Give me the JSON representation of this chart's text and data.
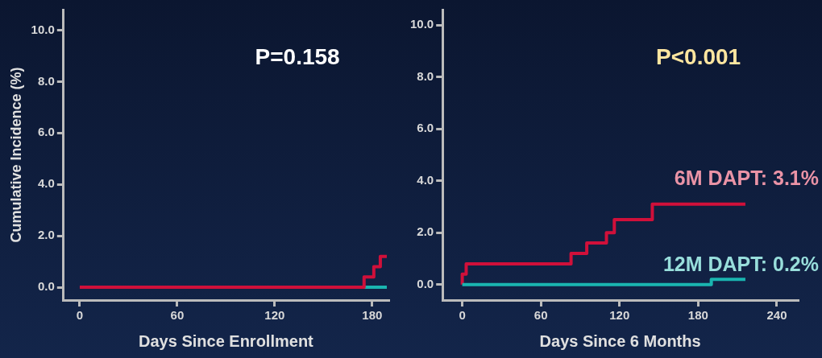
{
  "chart_data": [
    {
      "type": "step",
      "xlabel": "Days Since Enrollment",
      "ylabel": "Cumulative Incidence (%)",
      "annotations": [
        "P=0.158"
      ],
      "xlim": [
        -10,
        190
      ],
      "xticks": [
        0,
        60,
        120,
        180
      ],
      "ylim": [
        -0.5,
        10.8
      ],
      "yticks": [
        {
          "value": 0,
          "label": "0.0"
        },
        {
          "value": 2,
          "label": "2.0"
        },
        {
          "value": 4,
          "label": "4.0"
        },
        {
          "value": 6,
          "label": "6.0"
        },
        {
          "value": 8,
          "label": "8.0"
        },
        {
          "value": 10,
          "label": "10.0"
        }
      ],
      "grid": false,
      "legend": false,
      "marker": "none",
      "line_style": "solid",
      "series": [
        {
          "color": "#d0103a",
          "x": [
            0,
            175,
            181,
            185,
            189
          ],
          "values": [
            0,
            0.4,
            0.8,
            1.2,
            1.2
          ]
        },
        {
          "color": "#1ab5b0",
          "x": [
            175,
            189
          ],
          "values": [
            0,
            0
          ]
        }
      ]
    },
    {
      "type": "step",
      "xlabel": "Days Since 6 Months",
      "annotations": [
        "P<0.001"
      ],
      "xlim": [
        -15,
        256
      ],
      "xticks": [
        0,
        60,
        120,
        180,
        240
      ],
      "ylim": [
        -0.6,
        10.6
      ],
      "yticks": [
        {
          "value": 0,
          "label": "0.0"
        },
        {
          "value": 2,
          "label": "2.0"
        },
        {
          "value": 4,
          "label": "4.0"
        },
        {
          "value": 6,
          "label": "6.0"
        },
        {
          "value": 8,
          "label": "8.0"
        },
        {
          "value": 10,
          "label": "10.0"
        }
      ],
      "grid": false,
      "legend": false,
      "marker": "none",
      "line_style": "solid",
      "series": [
        {
          "name": "12M DAPT: 0.2%",
          "color": "#1ab5b0",
          "x": [
            0,
            190,
            216
          ],
          "values": [
            0,
            0.2,
            0.2
          ]
        },
        {
          "name": "6M DAPT: 3.1%",
          "color": "#d0103a",
          "x": [
            0,
            0,
            3,
            83,
            95,
            110,
            116,
            145,
            216
          ],
          "values": [
            0,
            0.4,
            0.8,
            1.2,
            1.6,
            2.0,
            2.5,
            3.1,
            3.1
          ]
        }
      ]
    }
  ]
}
